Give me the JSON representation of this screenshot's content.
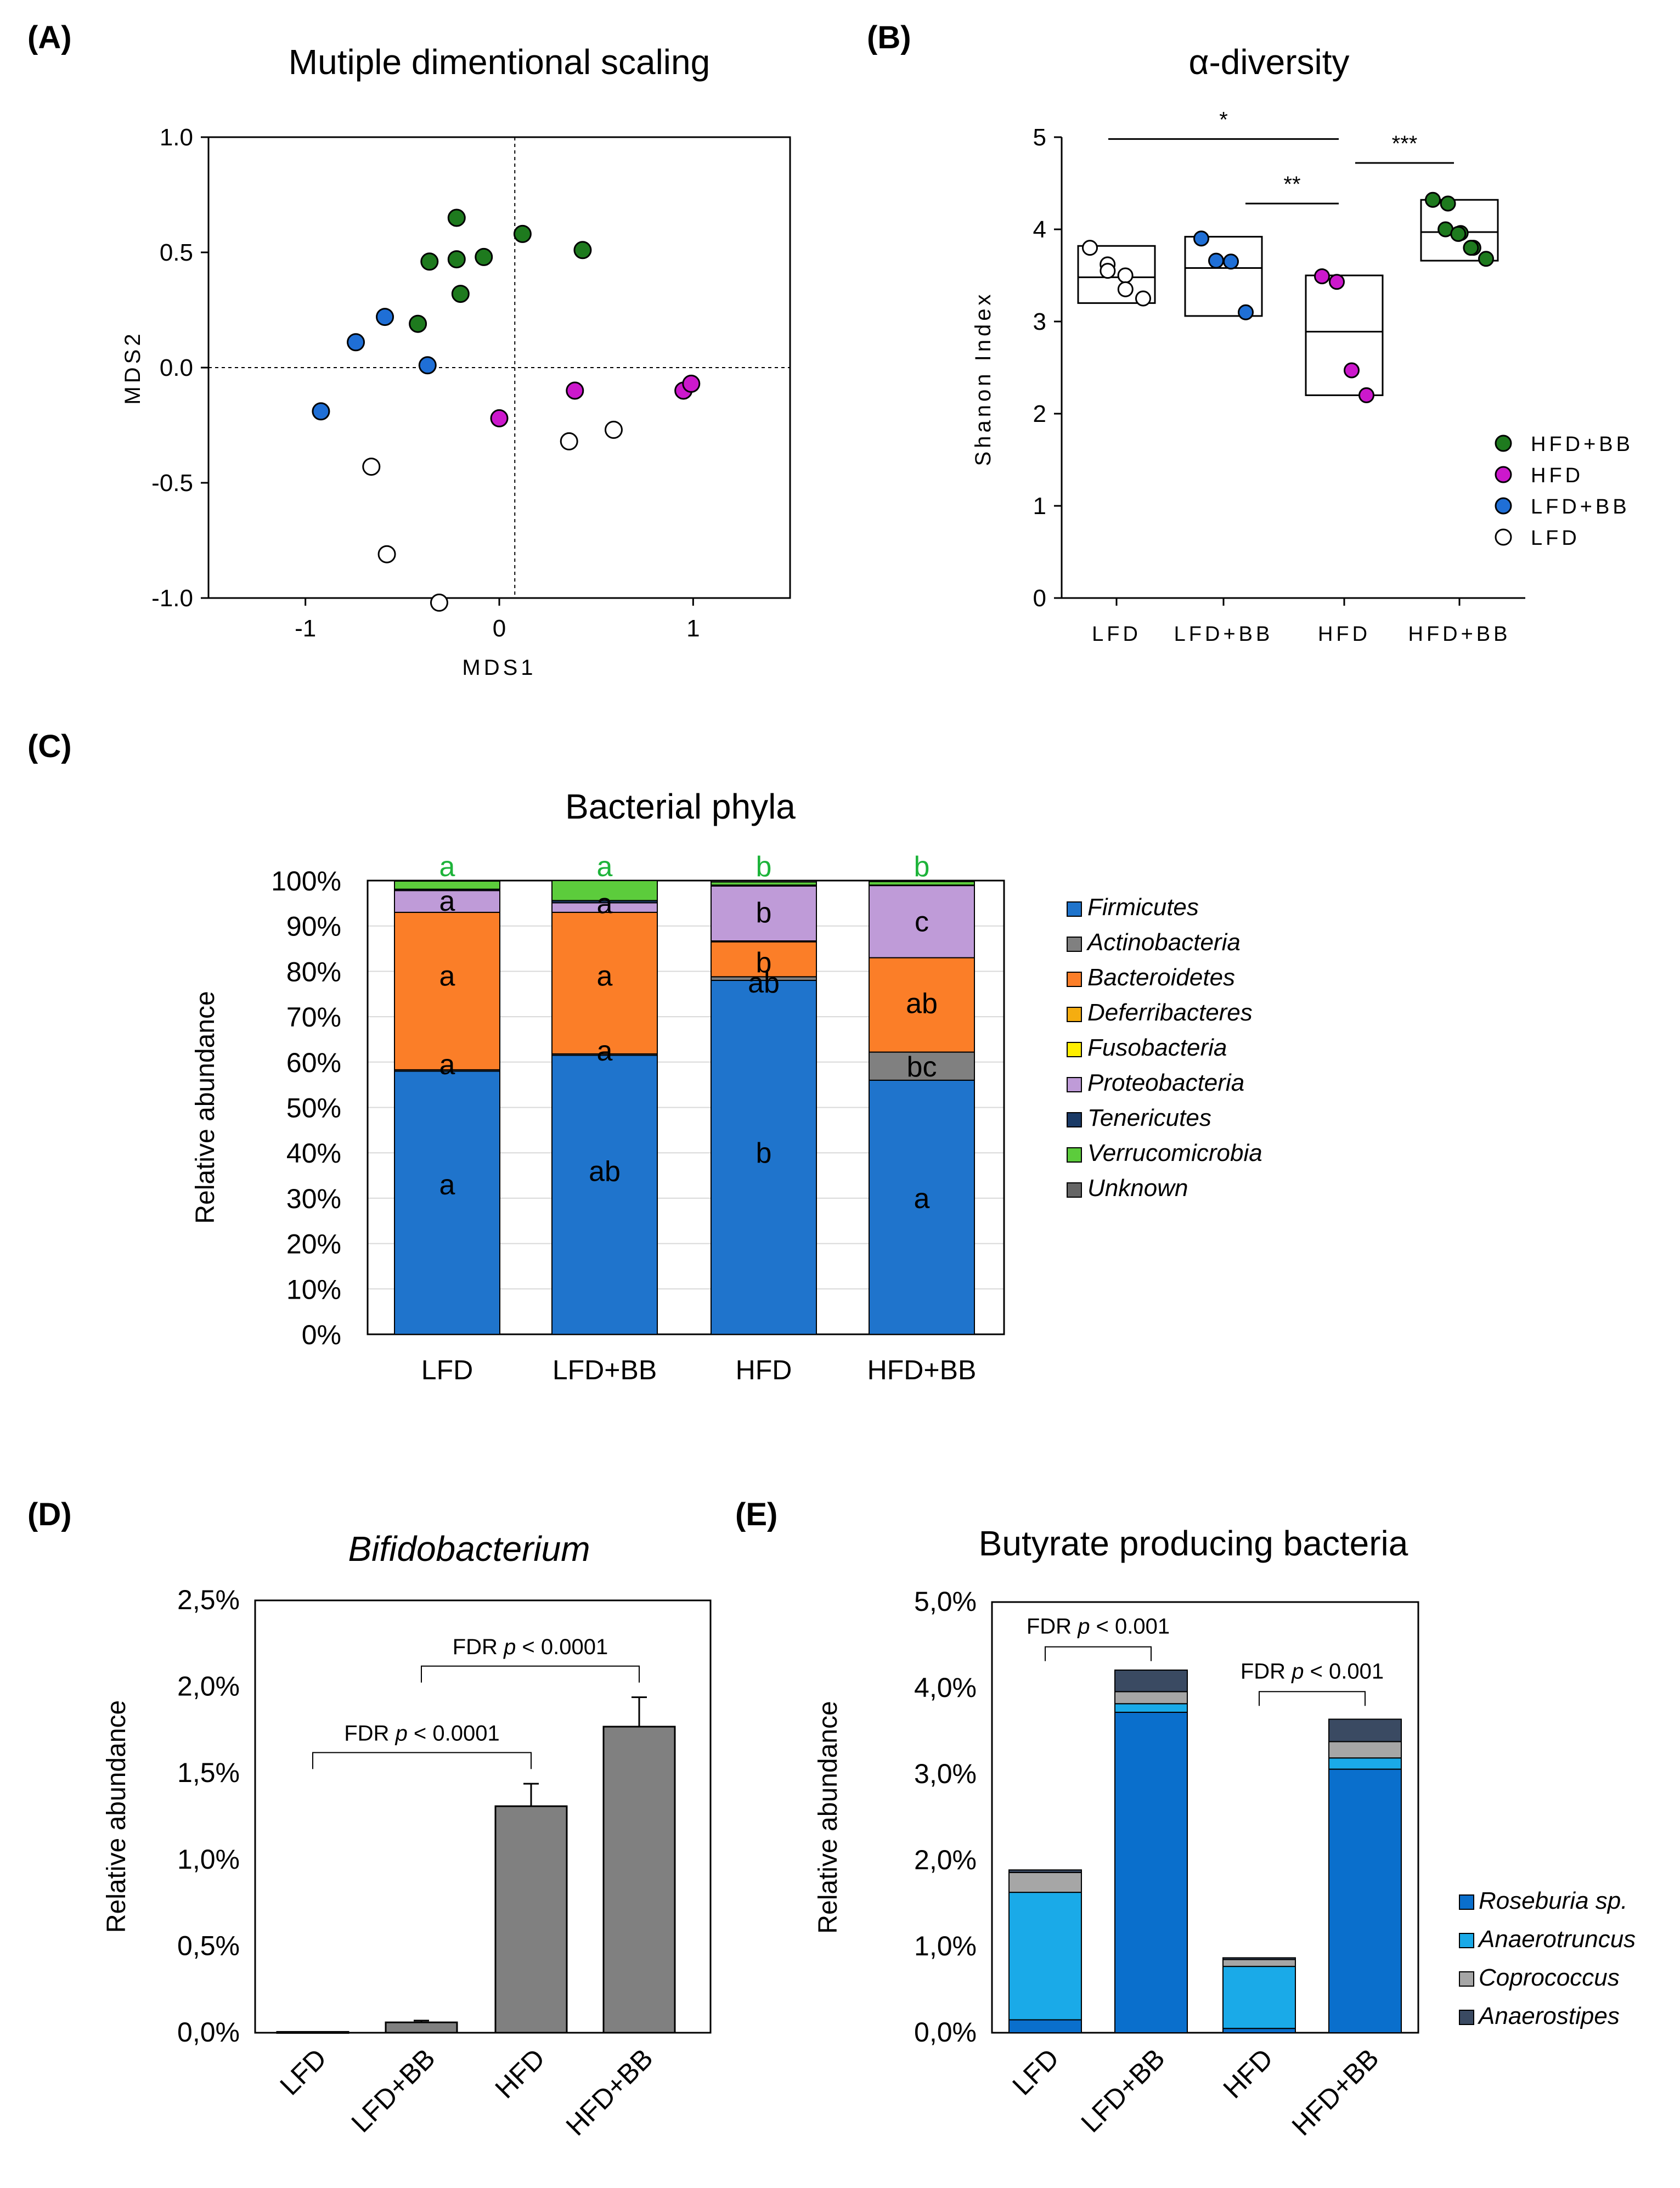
{
  "panels": {
    "A": {
      "label": "(A)"
    },
    "B": {
      "label": "(B)"
    },
    "C": {
      "label": "(C)"
    },
    "D": {
      "label": "(D)"
    },
    "E": {
      "label": "(E)"
    }
  },
  "colors": {
    "HFD+BB": "#1e7a1e",
    "HFD": "#cc18cc",
    "LFD+BB": "#1f6fd6",
    "LFD": "#ffffff",
    "Firmicutes": "#1f74cc",
    "Actinobacteria": "#808080",
    "Bacteroidetes": "#fb7e28",
    "Deferribacteres": "#f5ad10",
    "Fusobacteria": "#ffee00",
    "Proteobacteria": "#bf9bd8",
    "Tenericutes": "#1a3a66",
    "Verrucomicrobia": "#5ccc3c",
    "Unknown": "#666666",
    "sig_letter_green": "#1db33a",
    "bar_gray": "#808080",
    "Roseburia sp.": "#0a6fcc",
    "Anaerotruncus": "#1aaae8",
    "Coprococcus": "#a6a6a6",
    "Anaerostipes": "#3a4a62"
  },
  "chart_data": [
    {
      "panel": "A",
      "type": "scatter",
      "title": "Mutiple dimentional scaling",
      "xlabel": "MDS1",
      "ylabel": "MDS2",
      "xlim": [
        -1.5,
        1.5
      ],
      "ylim": [
        -1.0,
        1.0
      ],
      "xticks": [
        -1,
        0,
        1
      ],
      "xtick_labels": [
        "-1",
        "0",
        "1"
      ],
      "yticks": [
        1.0,
        0.5,
        0.0,
        -0.5,
        -1.0
      ],
      "ytick_labels": [
        "1.0",
        "0.5",
        "0.0",
        "-0.5",
        "-1.0"
      ],
      "ref_lines": {
        "x": 0.08,
        "y": 0.0
      },
      "series": [
        {
          "name": "HFD+BB",
          "points": [
            [
              -0.22,
              0.65
            ],
            [
              0.12,
              0.58
            ],
            [
              0.43,
              0.51
            ],
            [
              -0.36,
              0.46
            ],
            [
              -0.22,
              0.47
            ],
            [
              -0.08,
              0.48
            ],
            [
              -0.2,
              0.32
            ],
            [
              -0.42,
              0.19
            ]
          ]
        },
        {
          "name": "LFD+BB",
          "points": [
            [
              -0.59,
              0.22
            ],
            [
              -0.74,
              0.11
            ],
            [
              -0.37,
              0.01
            ],
            [
              -0.92,
              -0.19
            ]
          ]
        },
        {
          "name": "HFD",
          "points": [
            [
              0.39,
              -0.1
            ],
            [
              0.0,
              -0.22
            ],
            [
              0.95,
              -0.1
            ],
            [
              0.99,
              -0.07
            ]
          ]
        },
        {
          "name": "LFD",
          "points": [
            [
              0.36,
              -0.32
            ],
            [
              0.59,
              -0.27
            ],
            [
              -0.66,
              -0.43
            ],
            [
              -0.58,
              -0.81
            ],
            [
              -0.31,
              -1.02
            ]
          ]
        }
      ]
    },
    {
      "panel": "B",
      "type": "box",
      "title": "α-diversity",
      "ylabel": "Shanon Index",
      "ylim": [
        0,
        5
      ],
      "yticks": [
        0,
        1,
        2,
        3,
        4,
        5
      ],
      "ytick_labels": [
        "0",
        "1",
        "2",
        "3",
        "4",
        "5"
      ],
      "categories": [
        "LFD",
        "LFD+BB",
        "HFD",
        "HFD+BB"
      ],
      "boxes": [
        {
          "name": "LFD",
          "min": 3.2,
          "median": 3.48,
          "max": 3.82,
          "points": [
            3.8,
            3.62,
            3.55,
            3.5,
            3.35,
            3.25
          ]
        },
        {
          "name": "LFD+BB",
          "min": 3.06,
          "median": 3.58,
          "max": 3.92,
          "points": [
            3.9,
            3.66,
            3.65,
            3.1
          ]
        },
        {
          "name": "HFD",
          "min": 2.2,
          "median": 2.89,
          "max": 3.5,
          "points": [
            3.49,
            3.43,
            2.47,
            2.2
          ]
        },
        {
          "name": "HFD+BB",
          "min": 3.66,
          "median": 3.97,
          "max": 4.32,
          "points": [
            4.32,
            4.28,
            4.0,
            3.96,
            3.95,
            3.8,
            3.8,
            3.68
          ]
        }
      ],
      "legend": [
        "HFD+BB",
        "HFD",
        "LFD+BB",
        "LFD"
      ],
      "significance": [
        {
          "from": "LFD",
          "to": "HFD",
          "y": 4.98,
          "label": "*"
        },
        {
          "from": "LFD+BB",
          "to": "HFD",
          "y": 4.28,
          "label": "**"
        },
        {
          "from": "HFD",
          "to": "HFD+BB",
          "y": 4.72,
          "label": "***"
        }
      ]
    },
    {
      "panel": "C",
      "type": "bar",
      "stacked": true,
      "title": "Bacterial phyla",
      "ylabel": "Relative abundance",
      "ylim": [
        0,
        100
      ],
      "yticks": [
        0,
        10,
        20,
        30,
        40,
        50,
        60,
        70,
        80,
        90,
        100
      ],
      "ytick_labels": [
        "0%",
        "10%",
        "20%",
        "30%",
        "40%",
        "50%",
        "60%",
        "70%",
        "80%",
        "90%",
        "100%"
      ],
      "categories": [
        "LFD",
        "LFD+BB",
        "HFD",
        "HFD+BB"
      ],
      "series": [
        {
          "name": "Firmicutes",
          "values": [
            58.0,
            61.5,
            78.0,
            56.0
          ]
        },
        {
          "name": "Actinobacteria",
          "values": [
            0.3,
            0.3,
            0.8,
            6.2
          ]
        },
        {
          "name": "Bacteroidetes",
          "values": [
            34.7,
            31.2,
            7.7,
            20.8
          ]
        },
        {
          "name": "Deferribacteres",
          "values": [
            0.0,
            0.0,
            0.2,
            0.0
          ]
        },
        {
          "name": "Fusobacteria",
          "values": [
            0.0,
            0.0,
            0.0,
            0.0
          ]
        },
        {
          "name": "Proteobacteria",
          "values": [
            4.8,
            2.1,
            12.1,
            15.9
          ]
        },
        {
          "name": "Tenericutes",
          "values": [
            0.3,
            0.5,
            0.2,
            0.1
          ]
        },
        {
          "name": "Verrucomicrobia",
          "values": [
            1.8,
            4.4,
            0.7,
            0.8
          ]
        },
        {
          "name": "Unknown",
          "values": [
            0.1,
            0.0,
            0.3,
            0.2
          ]
        }
      ],
      "legend": [
        "Firmicutes",
        "Actinobacteria",
        "Bacteroidetes",
        "Deferribacteres",
        "Fusobacteria",
        "Proteobacteria",
        "Tenericutes",
        "Verrucomicrobia",
        "Unknown"
      ],
      "top_letters": [
        "a",
        "a",
        "b",
        "b"
      ],
      "segment_letters": [
        [
          {
            "at": 33,
            "text": "a"
          },
          {
            "at": 59.5,
            "text": "a"
          },
          {
            "at": 79,
            "text": "a"
          },
          {
            "at": 95.5,
            "text": "a"
          }
        ],
        [
          {
            "at": 36,
            "text": "ab"
          },
          {
            "at": 62.5,
            "text": "a"
          },
          {
            "at": 79,
            "text": "a"
          },
          {
            "at": 95,
            "text": "a"
          }
        ],
        [
          {
            "at": 40,
            "text": "b"
          },
          {
            "at": 77.5,
            "text": "ab"
          },
          {
            "at": 82,
            "text": "b"
          },
          {
            "at": 93,
            "text": "b"
          }
        ],
        [
          {
            "at": 30,
            "text": "a"
          },
          {
            "at": 59,
            "text": "bc"
          },
          {
            "at": 73,
            "text": "ab"
          },
          {
            "at": 91,
            "text": "c"
          }
        ]
      ]
    },
    {
      "panel": "D",
      "type": "bar",
      "title": "Bifidobacterium",
      "ylabel": "Relative abundance",
      "ylim": [
        0,
        2.5
      ],
      "yticks": [
        0,
        0.5,
        1.0,
        1.5,
        2.0,
        2.5
      ],
      "ytick_labels": [
        "0,0%",
        "0,5%",
        "1,0%",
        "1,5%",
        "2,0%",
        "2,5%"
      ],
      "categories": [
        "LFD",
        "LFD+BB",
        "HFD",
        "HFD+BB"
      ],
      "values": [
        0.005,
        0.06,
        1.31,
        1.77
      ],
      "errors": [
        0.0,
        0.01,
        0.13,
        0.17
      ],
      "brackets": [
        {
          "from": "LFD",
          "to": "HFD",
          "y": 1.62,
          "label_prefix": "FDR ",
          "label_p": "p",
          "label_suffix": " < 0.0001"
        },
        {
          "from": "LFD+BB",
          "to": "HFD+BB",
          "y": 2.12,
          "label_prefix": "FDR ",
          "label_p": "p",
          "label_suffix": " < 0.0001"
        }
      ]
    },
    {
      "panel": "E",
      "type": "bar",
      "stacked": true,
      "title": "Butyrate producing bacteria",
      "ylabel": "Relative abundance",
      "ylim": [
        0,
        5.0
      ],
      "yticks": [
        0,
        1.0,
        2.0,
        3.0,
        4.0,
        5.0
      ],
      "ytick_labels": [
        "0,0%",
        "1,0%",
        "2,0%",
        "3,0%",
        "4,0%",
        "5,0%"
      ],
      "categories": [
        "LFD",
        "LFD+BB",
        "HFD",
        "HFD+BB"
      ],
      "series": [
        {
          "name": "Roseburia sp.",
          "values": [
            0.15,
            3.72,
            0.05,
            3.06
          ]
        },
        {
          "name": "Anaerotruncus",
          "values": [
            1.48,
            0.1,
            0.72,
            0.13
          ]
        },
        {
          "name": "Coprococcus",
          "values": [
            0.23,
            0.14,
            0.08,
            0.19
          ]
        },
        {
          "name": "Anaerostipes",
          "values": [
            0.03,
            0.25,
            0.02,
            0.26
          ]
        }
      ],
      "legend": [
        "Roseburia sp.",
        "Anaerotruncus",
        "Coprococcus",
        "Anaerostipes"
      ],
      "brackets": [
        {
          "from": "LFD",
          "to": "LFD+BB",
          "y": 4.48,
          "label_prefix": "FDR ",
          "label_p": "p",
          "label_suffix": " < 0.001"
        },
        {
          "from": "HFD",
          "to": "HFD+BB",
          "y": 3.96,
          "label_prefix": "FDR ",
          "label_p": "p",
          "label_suffix": " < 0.001"
        }
      ]
    }
  ]
}
